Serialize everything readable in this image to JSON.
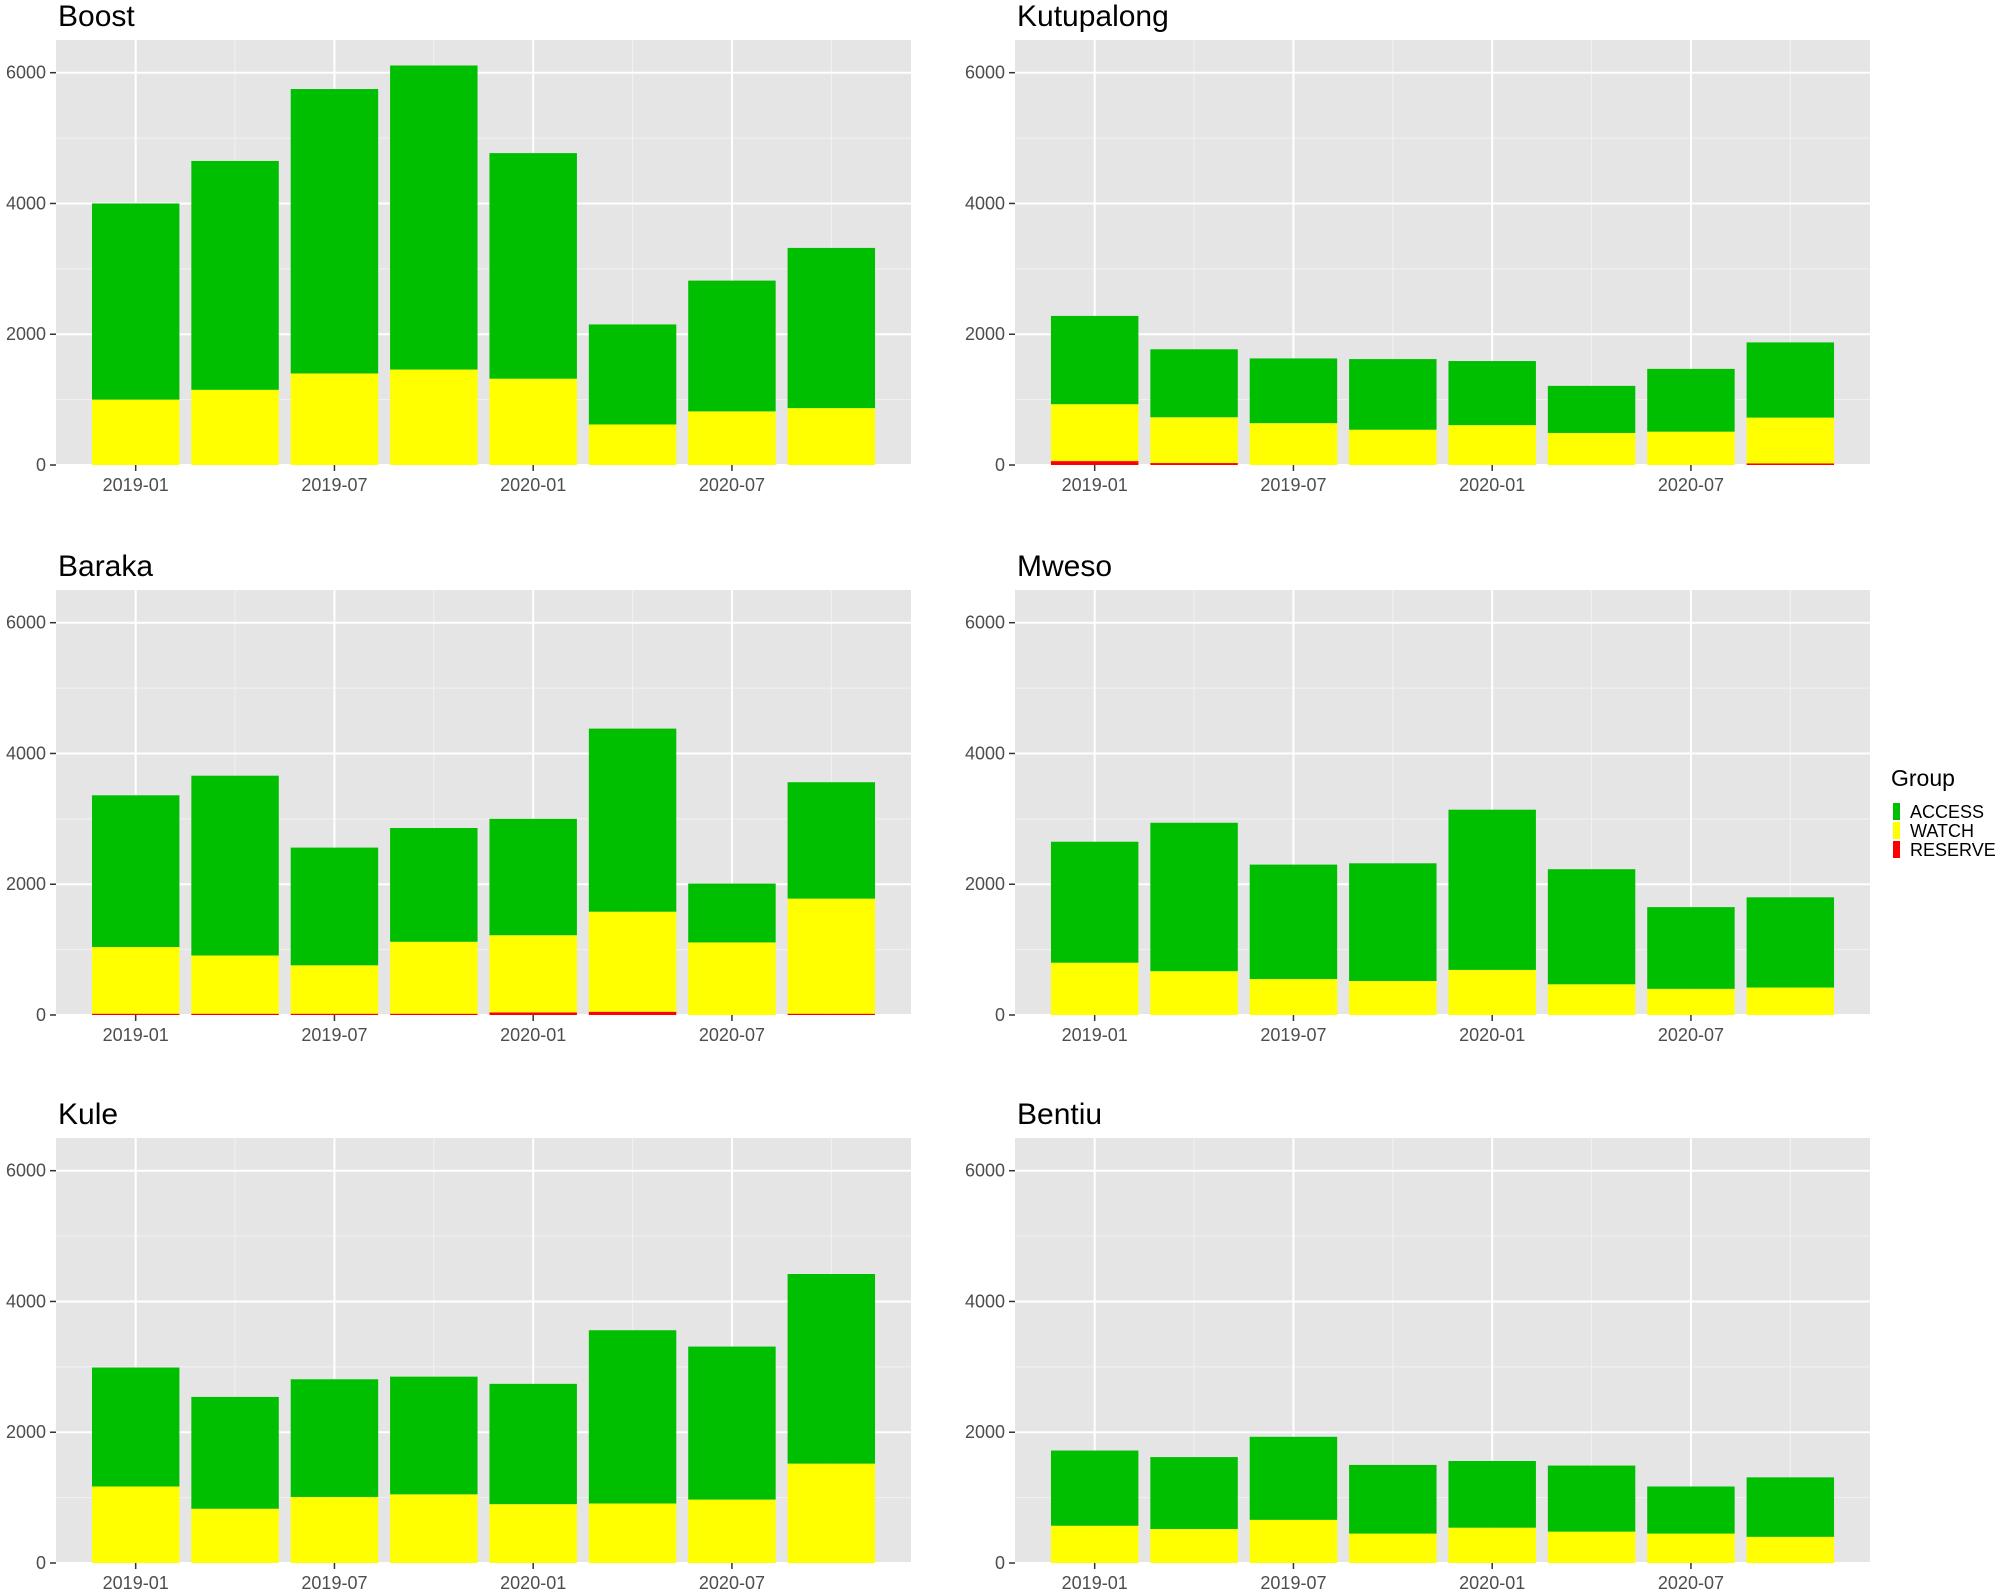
{
  "chart_data": {
    "type": "bar",
    "stacked": true,
    "x_tick_labels": [
      "2019-01",
      "2019-07",
      "2020-01",
      "2020-07"
    ],
    "y_tick_labels": [
      "0",
      "2000",
      "4000",
      "6000"
    ],
    "ylim": [
      0,
      6500
    ],
    "legend": {
      "title": "Group",
      "position": "right",
      "entries": [
        {
          "name": "ACCESS",
          "color": "#00bf00"
        },
        {
          "name": "WATCH",
          "color": "#ffff00"
        },
        {
          "name": "RESERVE",
          "color": "#ff0000"
        }
      ]
    },
    "panels": [
      {
        "title": "Boost",
        "access": [
          3000,
          3500,
          4350,
          4650,
          3450,
          1530,
          2000,
          2450
        ],
        "watch": [
          1000,
          1150,
          1400,
          1460,
          1320,
          620,
          820,
          870
        ],
        "reserve": [
          0,
          0,
          0,
          0,
          0,
          0,
          0,
          0
        ]
      },
      {
        "title": "Kutupalong",
        "access": [
          1350,
          1040,
          990,
          1080,
          980,
          720,
          960,
          1150
        ],
        "watch": [
          870,
          700,
          640,
          540,
          610,
          490,
          510,
          700
        ],
        "reserve": [
          60,
          30,
          0,
          0,
          0,
          0,
          0,
          25
        ]
      },
      {
        "title": "Baraka",
        "access": [
          2320,
          2750,
          1800,
          1740,
          1780,
          2800,
          900,
          1780
        ],
        "watch": [
          1020,
          890,
          740,
          1100,
          1180,
          1530,
          1110,
          1760
        ],
        "reserve": [
          20,
          20,
          20,
          20,
          40,
          50,
          0,
          20
        ]
      },
      {
        "title": "Mweso",
        "access": [
          1850,
          2270,
          1750,
          1800,
          2450,
          1760,
          1250,
          1380
        ],
        "watch": [
          800,
          670,
          550,
          520,
          690,
          470,
          400,
          420
        ],
        "reserve": [
          0,
          0,
          0,
          0,
          0,
          0,
          0,
          0
        ]
      },
      {
        "title": "Kule",
        "access": [
          1820,
          1710,
          1800,
          1800,
          1840,
          2650,
          2340,
          2900
        ],
        "watch": [
          1170,
          830,
          1010,
          1050,
          900,
          910,
          970,
          1520
        ],
        "reserve": [
          0,
          0,
          0,
          0,
          0,
          0,
          0,
          0
        ]
      },
      {
        "title": "Bentiu",
        "access": [
          1150,
          1100,
          1270,
          1050,
          1020,
          1010,
          720,
          910
        ],
        "watch": [
          570,
          520,
          660,
          450,
          540,
          480,
          450,
          400
        ],
        "reserve": [
          0,
          0,
          0,
          0,
          0,
          0,
          0,
          0
        ]
      }
    ]
  }
}
